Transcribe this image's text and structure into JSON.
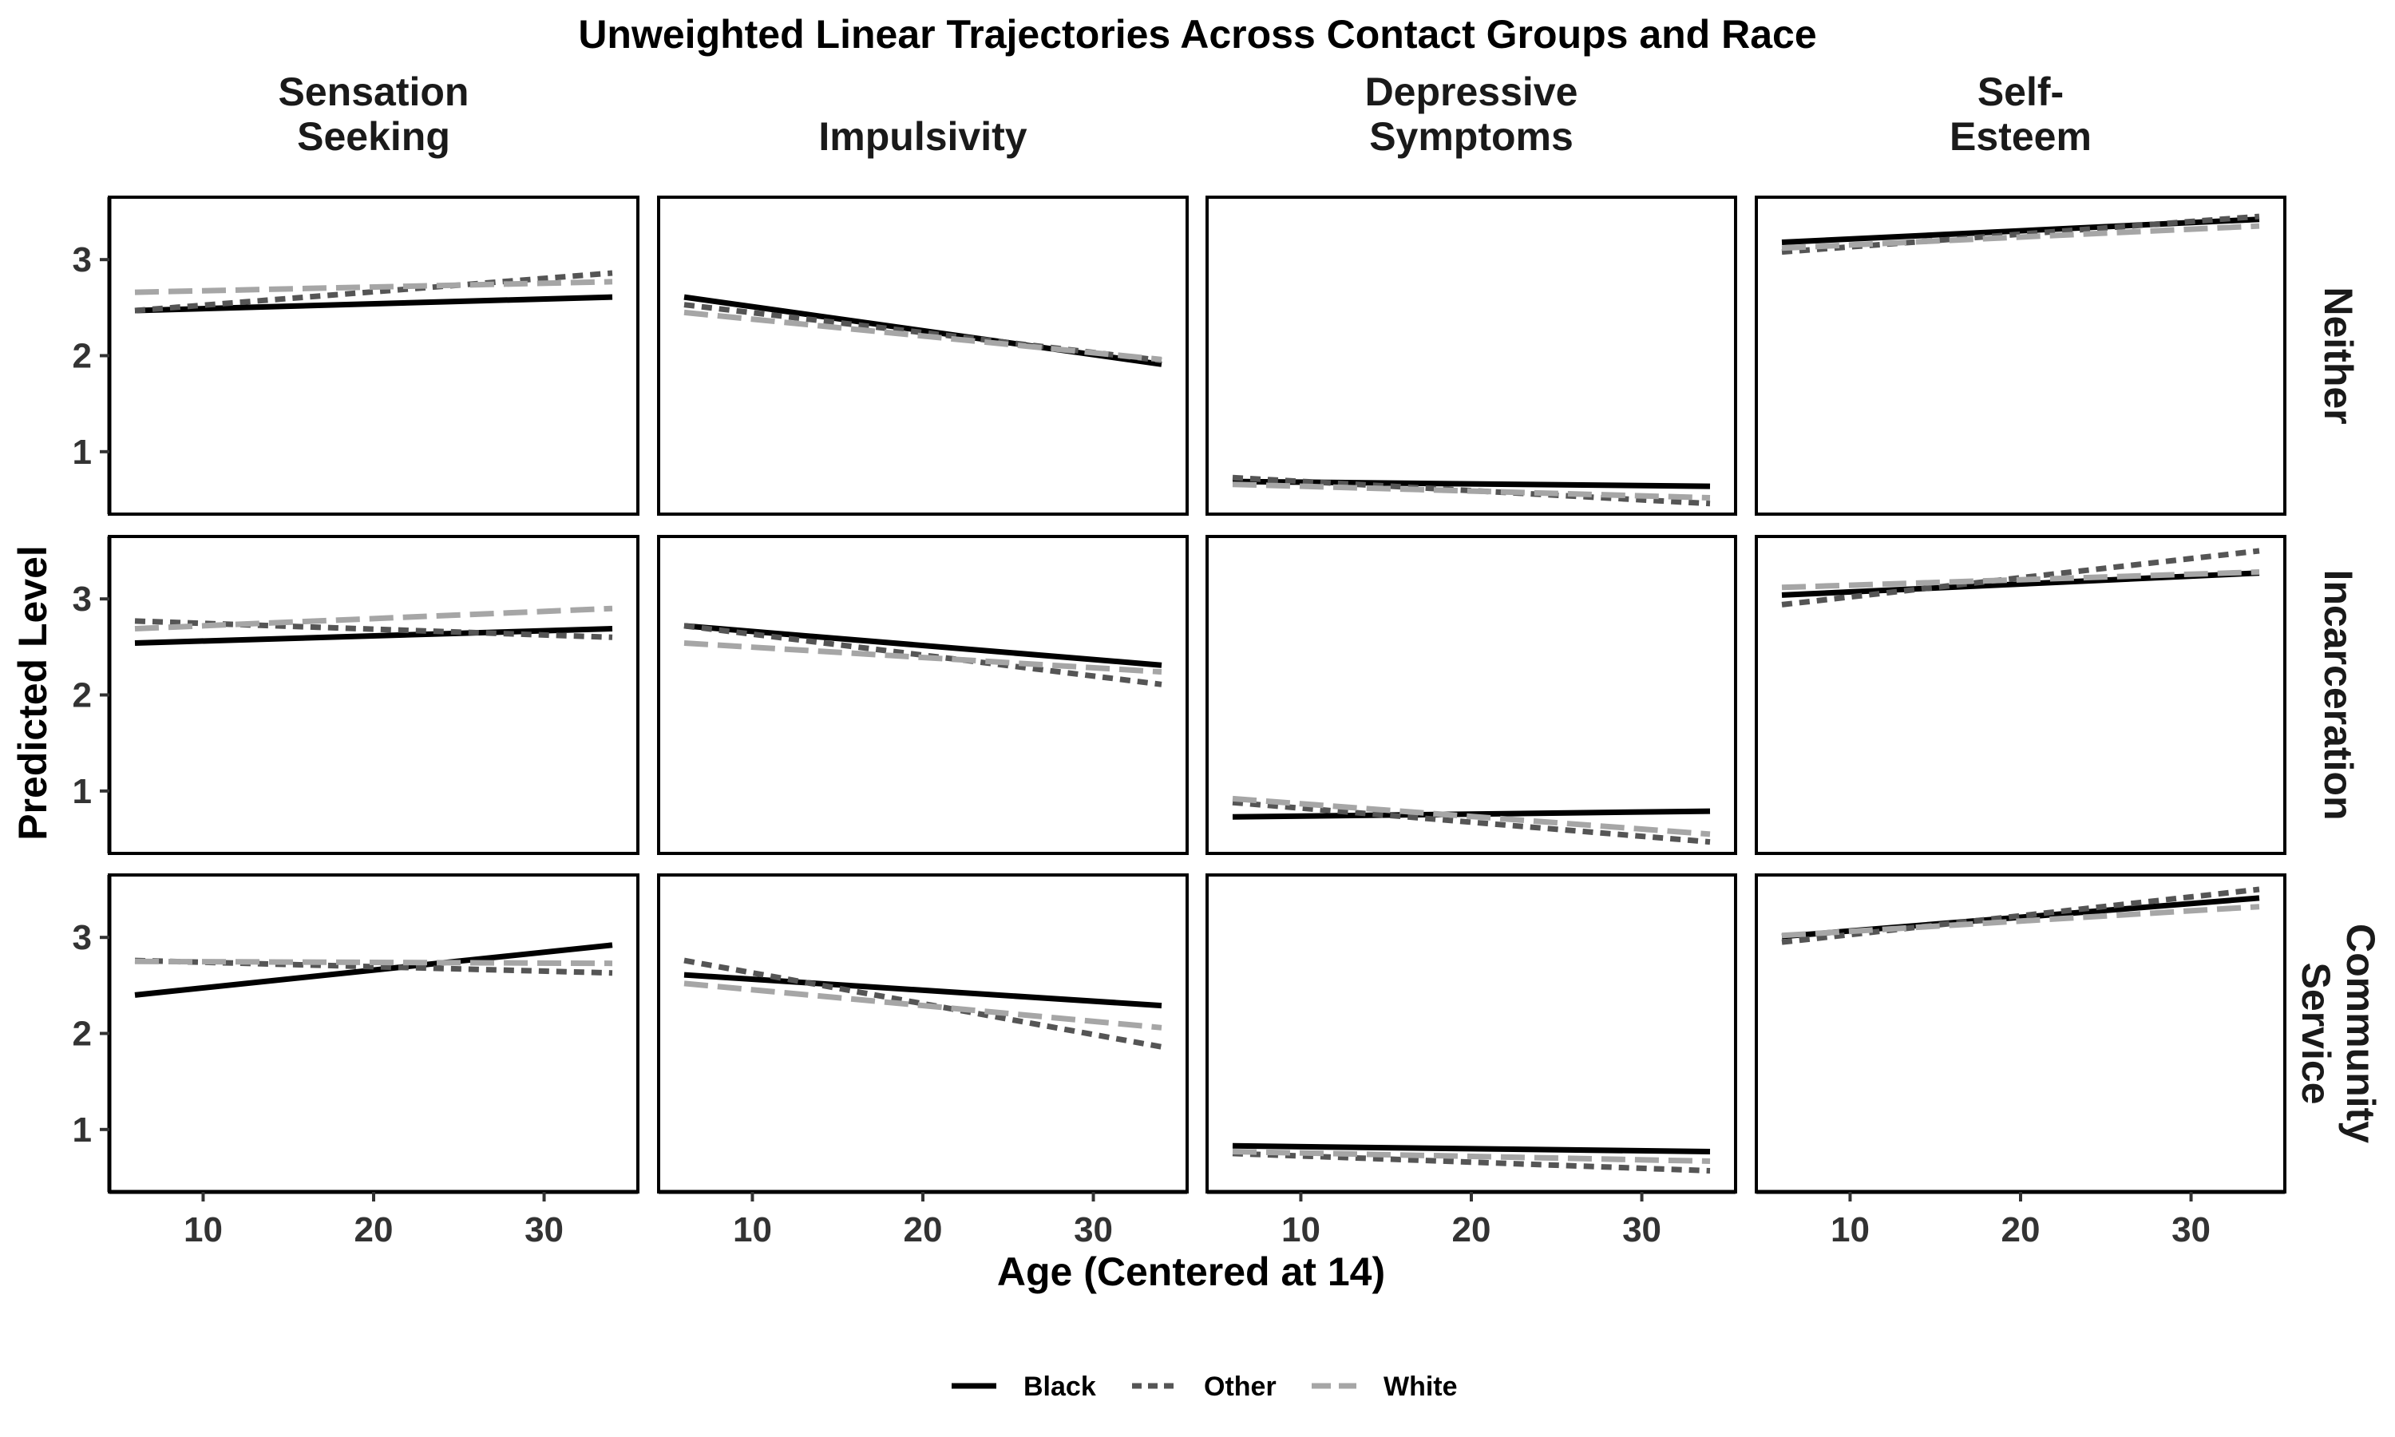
{
  "chart_data": {
    "type": "line",
    "title": "Unweighted Linear Trajectories Across Contact Groups and Race",
    "xlabel": "Age (Centered at 14)",
    "ylabel": "Predicted Level",
    "xlim": [
      4.5,
      35.5
    ],
    "ylim": [
      0.35,
      3.65
    ],
    "x_ticks": [
      10,
      20,
      30
    ],
    "y_ticks": [
      1,
      2,
      3
    ],
    "grid": false,
    "legend_position": "bottom",
    "col_labels": [
      [
        "Sensation",
        "Seeking"
      ],
      [
        "Impulsivity"
      ],
      [
        "Depressive",
        "Symptoms"
      ],
      [
        "Self-",
        "Esteem"
      ]
    ],
    "row_labels": [
      [
        "Neither"
      ],
      [
        "Incarceration"
      ],
      [
        "Community",
        "Service"
      ]
    ],
    "series_styles": [
      {
        "name": "Black",
        "color": "#000000",
        "dash": "solid"
      },
      {
        "name": "Other",
        "color": "#555555",
        "dash": "dotted"
      },
      {
        "name": "White",
        "color": "#a6a6a6",
        "dash": "dashed"
      }
    ],
    "panels": [
      {
        "row": 0,
        "col": 0,
        "series": [
          {
            "name": "Black",
            "x": [
              6,
              34
            ],
            "y": [
              2.47,
              2.61
            ]
          },
          {
            "name": "Other",
            "x": [
              6,
              34
            ],
            "y": [
              2.47,
              2.86
            ]
          },
          {
            "name": "White",
            "x": [
              6,
              34
            ],
            "y": [
              2.66,
              2.77
            ]
          }
        ]
      },
      {
        "row": 0,
        "col": 1,
        "series": [
          {
            "name": "Black",
            "x": [
              6,
              34
            ],
            "y": [
              2.61,
              1.91
            ]
          },
          {
            "name": "Other",
            "x": [
              6,
              34
            ],
            "y": [
              2.53,
              1.95
            ]
          },
          {
            "name": "White",
            "x": [
              6,
              34
            ],
            "y": [
              2.45,
              1.96
            ]
          }
        ]
      },
      {
        "row": 0,
        "col": 2,
        "series": [
          {
            "name": "Black",
            "x": [
              6,
              34
            ],
            "y": [
              0.69,
              0.64
            ]
          },
          {
            "name": "Other",
            "x": [
              6,
              34
            ],
            "y": [
              0.73,
              0.46
            ]
          },
          {
            "name": "White",
            "x": [
              6,
              34
            ],
            "y": [
              0.66,
              0.52
            ]
          }
        ]
      },
      {
        "row": 0,
        "col": 3,
        "series": [
          {
            "name": "Black",
            "x": [
              6,
              34
            ],
            "y": [
              3.18,
              3.42
            ]
          },
          {
            "name": "Other",
            "x": [
              6,
              34
            ],
            "y": [
              3.08,
              3.45
            ]
          },
          {
            "name": "White",
            "x": [
              6,
              34
            ],
            "y": [
              3.12,
              3.35
            ]
          }
        ]
      },
      {
        "row": 1,
        "col": 0,
        "series": [
          {
            "name": "Black",
            "x": [
              6,
              34
            ],
            "y": [
              2.54,
              2.69
            ]
          },
          {
            "name": "Other",
            "x": [
              6,
              34
            ],
            "y": [
              2.77,
              2.6
            ]
          },
          {
            "name": "White",
            "x": [
              6,
              34
            ],
            "y": [
              2.69,
              2.9
            ]
          }
        ]
      },
      {
        "row": 1,
        "col": 1,
        "series": [
          {
            "name": "Black",
            "x": [
              6,
              34
            ],
            "y": [
              2.72,
              2.31
            ]
          },
          {
            "name": "Other",
            "x": [
              6,
              34
            ],
            "y": [
              2.72,
              2.11
            ]
          },
          {
            "name": "White",
            "x": [
              6,
              34
            ],
            "y": [
              2.54,
              2.24
            ]
          }
        ]
      },
      {
        "row": 1,
        "col": 2,
        "series": [
          {
            "name": "Black",
            "x": [
              6,
              34
            ],
            "y": [
              0.73,
              0.79
            ]
          },
          {
            "name": "Other",
            "x": [
              6,
              34
            ],
            "y": [
              0.88,
              0.47
            ]
          },
          {
            "name": "White",
            "x": [
              6,
              34
            ],
            "y": [
              0.92,
              0.55
            ]
          }
        ]
      },
      {
        "row": 1,
        "col": 3,
        "series": [
          {
            "name": "Black",
            "x": [
              6,
              34
            ],
            "y": [
              3.04,
              3.27
            ]
          },
          {
            "name": "Other",
            "x": [
              6,
              34
            ],
            "y": [
              2.94,
              3.5
            ]
          },
          {
            "name": "White",
            "x": [
              6,
              34
            ],
            "y": [
              3.12,
              3.28
            ]
          }
        ]
      },
      {
        "row": 2,
        "col": 0,
        "series": [
          {
            "name": "Black",
            "x": [
              6,
              34
            ],
            "y": [
              2.4,
              2.92
            ]
          },
          {
            "name": "Other",
            "x": [
              6,
              34
            ],
            "y": [
              2.76,
              2.63
            ]
          },
          {
            "name": "White",
            "x": [
              6,
              34
            ],
            "y": [
              2.75,
              2.73
            ]
          }
        ]
      },
      {
        "row": 2,
        "col": 1,
        "series": [
          {
            "name": "Black",
            "x": [
              6,
              34
            ],
            "y": [
              2.61,
              2.29
            ]
          },
          {
            "name": "Other",
            "x": [
              6,
              34
            ],
            "y": [
              2.76,
              1.86
            ]
          },
          {
            "name": "White",
            "x": [
              6,
              34
            ],
            "y": [
              2.52,
              2.06
            ]
          }
        ]
      },
      {
        "row": 2,
        "col": 2,
        "series": [
          {
            "name": "Black",
            "x": [
              6,
              34
            ],
            "y": [
              0.83,
              0.77
            ]
          },
          {
            "name": "Other",
            "x": [
              6,
              34
            ],
            "y": [
              0.75,
              0.57
            ]
          },
          {
            "name": "White",
            "x": [
              6,
              34
            ],
            "y": [
              0.77,
              0.67
            ]
          }
        ]
      },
      {
        "row": 2,
        "col": 3,
        "series": [
          {
            "name": "Black",
            "x": [
              6,
              34
            ],
            "y": [
              3.01,
              3.41
            ]
          },
          {
            "name": "Other",
            "x": [
              6,
              34
            ],
            "y": [
              2.95,
              3.5
            ]
          },
          {
            "name": "White",
            "x": [
              6,
              34
            ],
            "y": [
              3.02,
              3.32
            ]
          }
        ]
      }
    ]
  }
}
